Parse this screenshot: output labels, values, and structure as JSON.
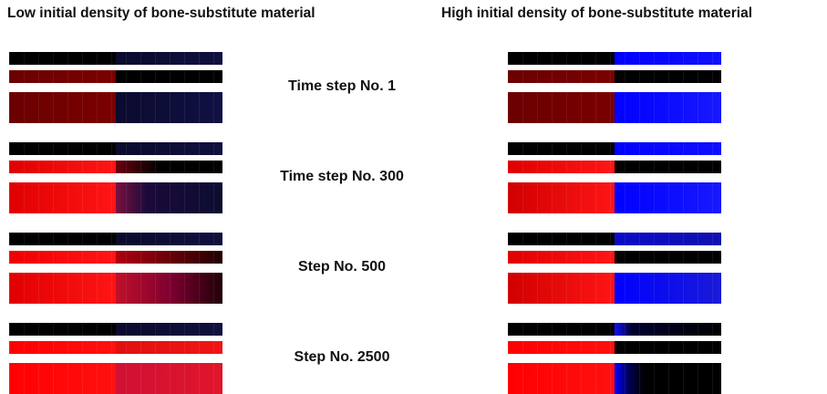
{
  "header": {
    "left": "Low initial density of bone-substitute material",
    "right": "High initial density of bone-substitute material"
  },
  "steps": [
    {
      "label": "Time step No. 1",
      "left": [
        "linear-gradient(to right, #000 0%, #000 50%, #0a0a2c 50%, #101040 100%)",
        "linear-gradient(to right, #6a0000 0%, #7a0000 50%, #000 50%, #000 100%)",
        "linear-gradient(to right, #6a0000 0%, #7a0000 50%, #0b0b2e 50%, #101044 100%)"
      ],
      "right": [
        "linear-gradient(to right, #000 0%, #000 50%, #0000ff 50%, #1010ff 100%)",
        "linear-gradient(to right, #6a0000 0%, #7a0000 50%, #000 50%, #000 100%)",
        "linear-gradient(to right, #6a0000 0%, #7a0000 50%, #0000ff 50%, #1818ff 100%)"
      ]
    },
    {
      "label": "Time step No. 300",
      "left": [
        "linear-gradient(to right, #000 0%, #000 50%, #0a0a2c 50%, #101040 100%)",
        "linear-gradient(to right, #e00000 0%, #ff1515 50%, #6a0010 50%, #000 70%, #000 100%)",
        "linear-gradient(to right, #e00000 0%, #ff1515 50%, #7a1040 50%, #1a0a3a 65%, #0c0c30 100%)"
      ],
      "right": [
        "linear-gradient(to right, #000 0%, #000 50%, #0000ff 50%, #1010ff 100%)",
        "linear-gradient(to right, #e00000 0%, #ff1515 50%, #000 50%, #000 100%)",
        "linear-gradient(to right, #d00000 0%, #ff1515 50%, #0000ff 50%, #1818ff 100%)"
      ]
    },
    {
      "label": "Step No. 500",
      "left": [
        "linear-gradient(to right, #000 0%, #000 50%, #0a0a2c 50%, #101040 100%)",
        "linear-gradient(to right, #f00000 0%, #ff1515 50%, #b00010 50%, #200000 100%)",
        "linear-gradient(to right, #e00000 0%, #ff1515 50%, #c0102a 50%, #800030 75%, #200008 100%)"
      ],
      "right": [
        "linear-gradient(to right, #000 0%, #000 50%, #0a0ac8 50%, #1010b0 100%)",
        "linear-gradient(to right, #e00000 0%, #ff1515 50%, #000 50%, #000 100%)",
        "linear-gradient(to right, #d00000 0%, #ff1515 50%, #0000ff 50%, #1a1ad8 100%)"
      ]
    },
    {
      "label": "Step No. 2500",
      "left": [
        "linear-gradient(to right, #000 0%, #000 50%, #0a0a2c 50%, #101040 100%)",
        "linear-gradient(to right, #ff0000 0%, #ff1010 50%, #e01010 50%, #f01515 100%)",
        "linear-gradient(to right, #ff0000 0%, #ff1010 50%, #d01035 50%, #e0152a 100%)"
      ],
      "right": [
        "linear-gradient(to right, #000 0%, #000 50%, #1010ff 50%, #000030 58%, #000 100%)",
        "linear-gradient(to right, #ff0000 0%, #ff1010 50%, #000 50%, #000 100%)",
        "linear-gradient(to right, #ff0000 0%, #ff1010 50%, #0000ff 50%, #000050 57%, #000 64%, #000 100%)"
      ]
    }
  ]
}
